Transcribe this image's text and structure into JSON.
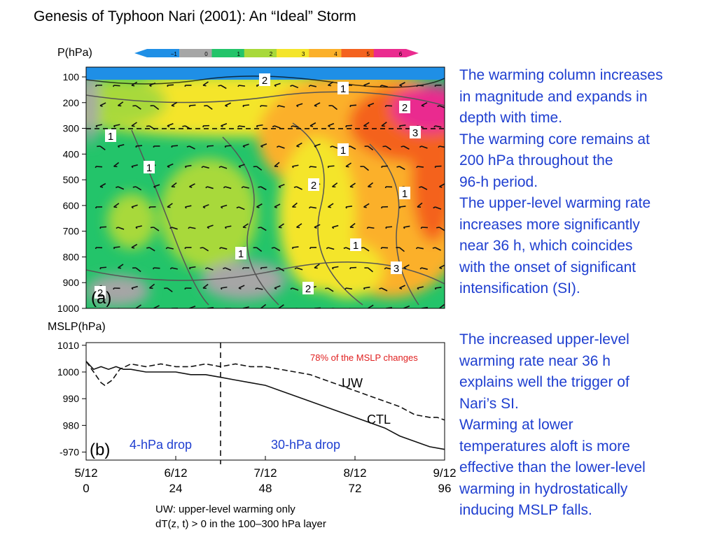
{
  "slide": {
    "title": "Genesis of Typhoon Nari (2001): An “Ideal” Storm"
  },
  "colorbar": {
    "ticks": [
      "−1",
      "0",
      "1",
      "2",
      "3",
      "4",
      "5",
      "6"
    ],
    "colors": [
      "#1f8fe6",
      "#a6a6a6",
      "#23c46a",
      "#a8d93a",
      "#f4e52b",
      "#fbb02a",
      "#f4621f",
      "#ea2b8f"
    ]
  },
  "panel_a": {
    "label": "(a)",
    "y_axis_title": "P(hPa)",
    "contour_labels": [
      "2",
      "1",
      "2",
      "3",
      "1",
      "1",
      "1",
      "2",
      "1",
      "1",
      "1",
      "2",
      "2",
      "3"
    ]
  },
  "panel_b": {
    "label": "(b)",
    "y_axis_title": "MSLP(hPa)",
    "annotation_red": "78% of the MSLP changes",
    "drop_left": "4-hPa drop",
    "drop_right": "30-hPa drop",
    "series_labels": {
      "uw": "UW",
      "ctl": "CTL"
    },
    "colors": {
      "annotation": "#e02020",
      "drops": "#1f3fd0"
    }
  },
  "chart_data": [
    {
      "type": "heatmap",
      "title": "",
      "xlabel": "",
      "ylabel": "P(hPa)",
      "y_ticks": [
        100,
        200,
        300,
        400,
        500,
        600,
        700,
        800,
        900,
        1000
      ],
      "y_scale": "linear",
      "x_range_h": [
        0,
        96
      ],
      "colorbar_range": [
        -1,
        6
      ],
      "dashed_reference_level_hPa": 300,
      "grid": false
    },
    {
      "type": "line",
      "title": "",
      "xlabel": "",
      "ylabel": "MSLP(hPa)",
      "x_ticks": [
        {
          "date": "5/12",
          "hour": "0"
        },
        {
          "date": "6/12",
          "hour": "24"
        },
        {
          "date": "7/12",
          "hour": "48"
        },
        {
          "date": "8/12",
          "hour": "72"
        },
        {
          "date": "9/12",
          "hour": "96"
        }
      ],
      "y_ticks": [
        1010,
        1000,
        990,
        980,
        970
      ],
      "xlim": [
        0,
        96
      ],
      "ylim": [
        967,
        1011
      ],
      "dashed_vertical_at_h": 36,
      "legend": "inline labels",
      "series": [
        {
          "name": "CTL",
          "style": "solid",
          "x": [
            0,
            2,
            4,
            6,
            8,
            10,
            12,
            16,
            20,
            24,
            28,
            32,
            36,
            40,
            44,
            48,
            52,
            56,
            60,
            64,
            68,
            72,
            76,
            80,
            84,
            88,
            92,
            96
          ],
          "values": [
            1004,
            1001,
            1002,
            1001,
            1002,
            1001,
            1001,
            1000,
            1000,
            1000,
            999,
            999,
            998,
            997,
            996,
            995,
            993,
            991,
            989,
            987,
            985,
            983,
            981,
            979,
            976,
            974,
            972,
            971
          ]
        },
        {
          "name": "UW",
          "style": "dashed",
          "x": [
            0,
            2,
            4,
            5,
            7,
            9,
            12,
            16,
            20,
            24,
            28,
            32,
            36,
            40,
            44,
            48,
            52,
            56,
            60,
            64,
            68,
            72,
            76,
            80,
            84,
            88,
            92,
            94,
            96
          ],
          "values": [
            1004,
            1000,
            996,
            995,
            997,
            1001,
            1003,
            1002,
            1003,
            1002,
            1002,
            1003,
            1002,
            1003,
            1002,
            1002,
            1001,
            1000,
            999,
            997,
            995,
            993,
            991,
            989,
            987,
            984,
            983,
            983,
            982
          ]
        }
      ]
    }
  ],
  "side_text": {
    "block1": [
      "The warming column increases",
      "in magnitude and expands in",
      "depth with time.",
      "The warming core remains at",
      "200 hPa throughout the",
      "96-h period.",
      "The upper-level warming rate",
      "increases more significantly",
      "near 36 h, which coincides",
      "with the onset of significant",
      "intensification (SI)."
    ],
    "block2": [
      "The increased upper-level",
      "warming rate near 36 h",
      "explains well the trigger of",
      "Nari’s SI.",
      "Warming at lower",
      "temperatures aloft is more",
      "effective than the lower-level",
      "warming in hydrostatically",
      "inducing MSLP falls."
    ]
  },
  "note": {
    "line1": "UW: upper-level warming only",
    "line2": "dT(z, t) > 0 in the 100–300 hPa layer"
  }
}
